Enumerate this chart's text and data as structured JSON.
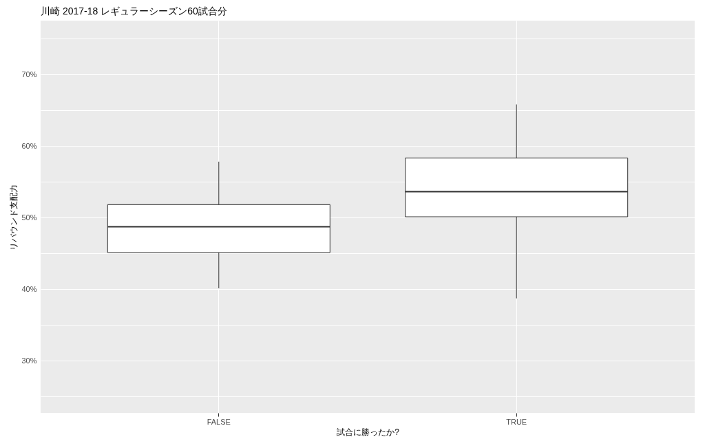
{
  "chart_data": {
    "type": "box",
    "title": "川崎 2017-18 レギュラーシーズン60試合分",
    "xlabel": "試合に勝ったか?",
    "ylabel": "リバウンド支配力",
    "categories": [
      "FALSE",
      "TRUE"
    ],
    "boxes": [
      {
        "low": 40.1,
        "q1": 45.1,
        "median": 48.7,
        "q3": 51.8,
        "high": 57.8
      },
      {
        "low": 38.7,
        "q1": 50.1,
        "median": 53.6,
        "q3": 58.3,
        "high": 65.8
      }
    ],
    "ylim": [
      22.7,
      77.5
    ],
    "yticks": [
      {
        "value": 25,
        "label": null
      },
      {
        "value": 30,
        "label": "30%"
      },
      {
        "value": 35,
        "label": null
      },
      {
        "value": 40,
        "label": "40%"
      },
      {
        "value": 45,
        "label": null
      },
      {
        "value": 50,
        "label": "50%"
      },
      {
        "value": 55,
        "label": null
      },
      {
        "value": 60,
        "label": "60%"
      },
      {
        "value": 65,
        "label": null
      },
      {
        "value": 70,
        "label": "70%"
      },
      {
        "value": 75,
        "label": null
      }
    ],
    "grid": true
  }
}
